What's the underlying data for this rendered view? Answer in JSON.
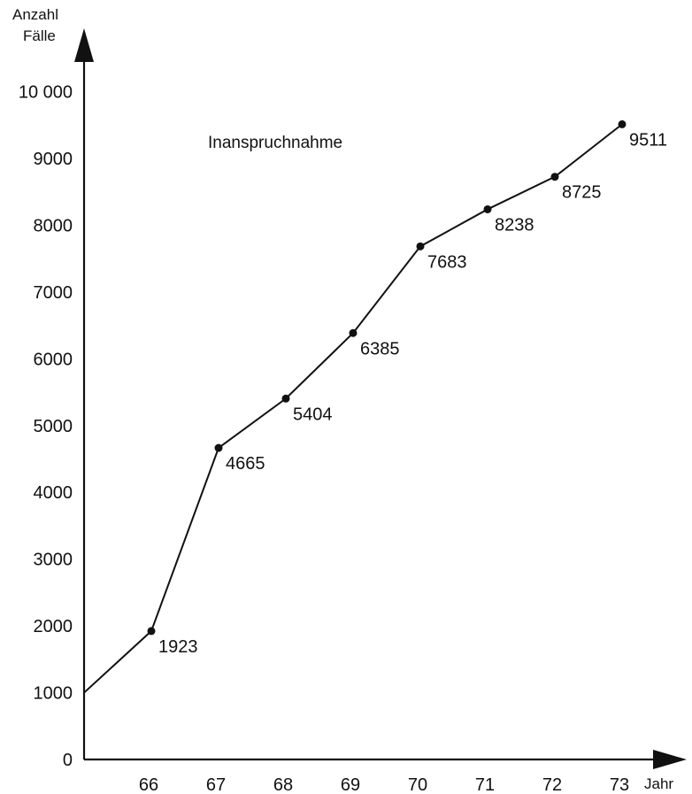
{
  "chart_data": {
    "type": "line",
    "title": "",
    "ylabel_line1": "Anzahl",
    "ylabel_line2": "Fälle",
    "xlabel": "Jahr",
    "annotation": "Inanspruchnahme",
    "ylim": [
      0,
      10000
    ],
    "y_ticks": [
      {
        "value": 0,
        "label": "0"
      },
      {
        "value": 1000,
        "label": "1000"
      },
      {
        "value": 2000,
        "label": "2000"
      },
      {
        "value": 3000,
        "label": "3000"
      },
      {
        "value": 4000,
        "label": "4000"
      },
      {
        "value": 5000,
        "label": "5000"
      },
      {
        "value": 6000,
        "label": "6000"
      },
      {
        "value": 7000,
        "label": "7000"
      },
      {
        "value": 8000,
        "label": "8000"
      },
      {
        "value": 9000,
        "label": "9000"
      },
      {
        "value": 10000,
        "label": "10 000"
      }
    ],
    "x": [
      66,
      67,
      68,
      69,
      70,
      71,
      72,
      73
    ],
    "values": [
      1923,
      4665,
      5404,
      6385,
      7683,
      8238,
      8725,
      9511
    ],
    "line_start": {
      "x": 65,
      "y": 1000
    },
    "grid": false,
    "legend": "none"
  }
}
